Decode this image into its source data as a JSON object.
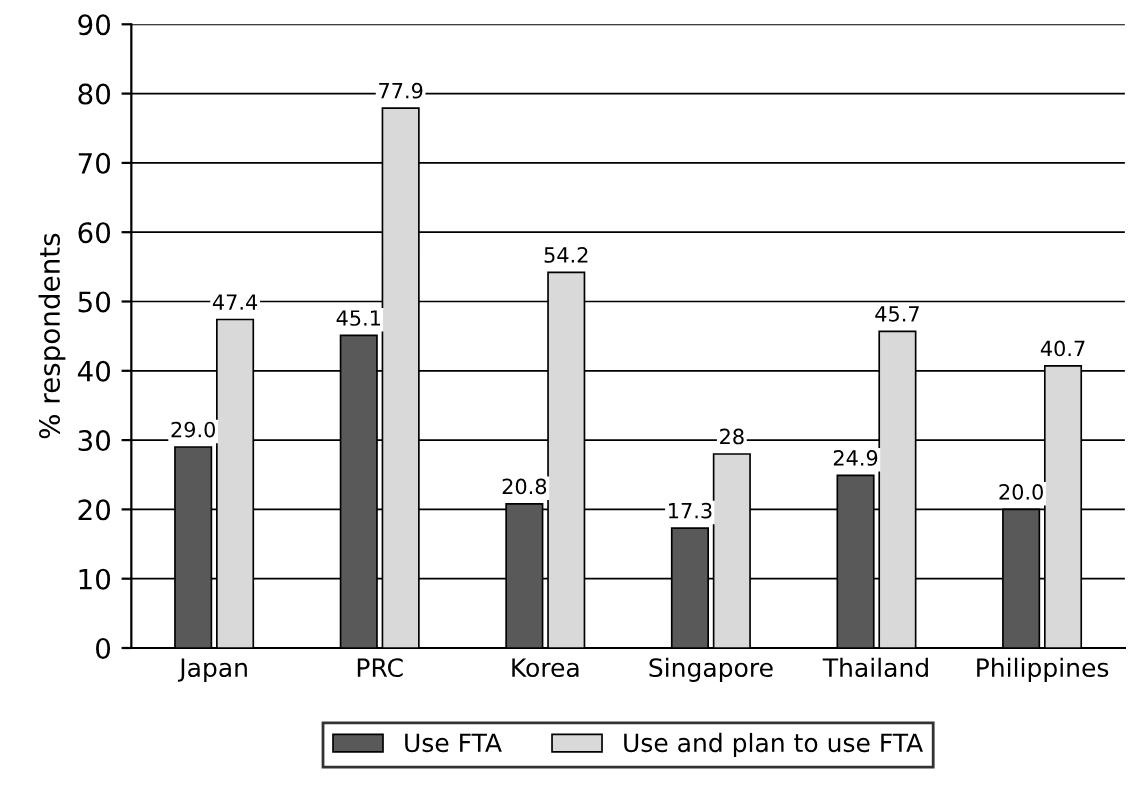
{
  "chart_data": {
    "type": "bar",
    "ylabel": "% respondents",
    "categories": [
      "Japan",
      "PRC",
      "Korea",
      "Singapore",
      "Thailand",
      "Philippines"
    ],
    "series": [
      {
        "name": "Use FTA",
        "color": "#595959",
        "values": [
          29.0,
          45.1,
          20.8,
          17.3,
          24.9,
          20.0
        ],
        "value_labels": [
          "29.0",
          "45.1",
          "20.8",
          "17.3",
          "24.9",
          "20.0"
        ]
      },
      {
        "name": "Use and plan to use FTA",
        "color": "#d9d9d9",
        "values": [
          47.4,
          77.9,
          54.2,
          28,
          45.7,
          40.7
        ],
        "value_labels": [
          "47.4",
          "77.9",
          "54.2",
          "28",
          "45.7",
          "40.7"
        ]
      }
    ],
    "ylim": [
      0,
      90
    ],
    "yticks": [
      0,
      10,
      20,
      30,
      40,
      50,
      60,
      70,
      80,
      90
    ],
    "grid": "y",
    "legend": "bottom"
  }
}
